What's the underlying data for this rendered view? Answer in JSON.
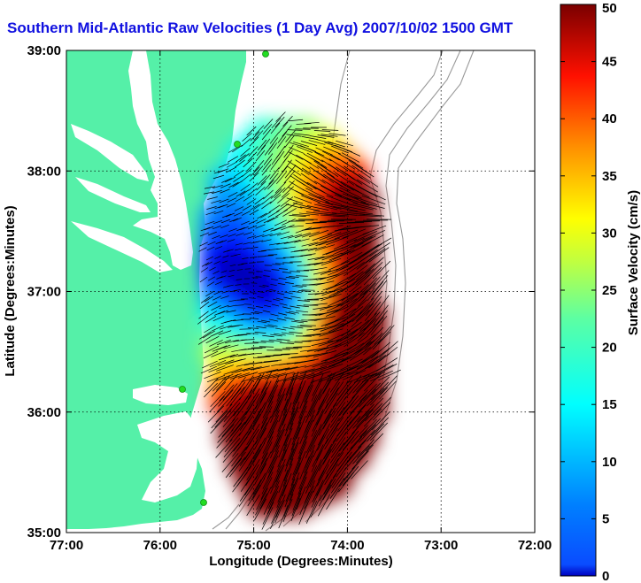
{
  "title": "Southern Mid-Atlantic Raw Velocities (1 Day Avg) 2007/10/02 1500 GMT",
  "map": {
    "xlabel": "Longitude (Degrees:Minutes)",
    "ylabel": "Latitude (Degrees:Minutes)",
    "x_ticks": [
      "77:00",
      "76:00",
      "75:00",
      "74:00",
      "73:00",
      "72:00"
    ],
    "y_ticks": [
      "39:00",
      "38:00",
      "37:00",
      "36:00",
      "35:00"
    ],
    "lon_range": [
      -77,
      -72
    ],
    "lat_range": [
      35,
      39
    ],
    "grid": true,
    "colors": {
      "land": "#55f0a8",
      "water": "#ffffff",
      "contour": "#999999",
      "station": "#22dd22",
      "vector": "#000000"
    }
  },
  "colorbar": {
    "label": "Surface Velocity (cm/s)",
    "ticks": [
      "0",
      "5",
      "10",
      "15",
      "20",
      "25",
      "30",
      "35",
      "40",
      "45",
      "50"
    ],
    "range": [
      0,
      50
    ],
    "colormap": "jet"
  }
}
